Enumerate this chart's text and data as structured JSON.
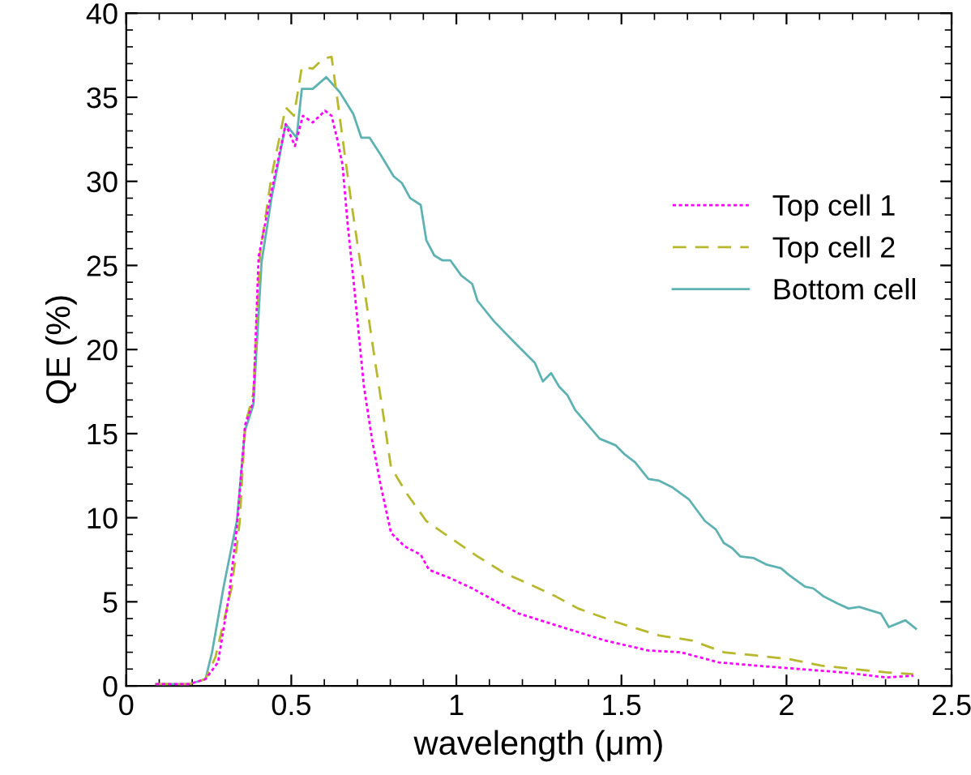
{
  "chart_data": {
    "type": "line",
    "xlabel": "wavelength (μm)",
    "ylabel": "QE (%)",
    "xlim": [
      0,
      2.5
    ],
    "xticks": [
      0,
      0.5,
      1,
      1.5,
      2,
      2.5
    ],
    "ylim": [
      0,
      40
    ],
    "yticks": [
      0,
      5,
      10,
      15,
      20,
      25,
      30,
      35,
      40
    ],
    "grid": false,
    "legend": "top right",
    "series": [
      {
        "name": "Top cell 1",
        "color": "#ff00ff",
        "line_style": "dotted",
        "x": [
          0.09,
          0.19,
          0.24,
          0.278,
          0.311,
          0.335,
          0.36,
          0.385,
          0.401,
          0.44,
          0.483,
          0.511,
          0.535,
          0.565,
          0.602,
          0.622,
          0.638,
          0.655,
          0.671,
          0.688,
          0.704,
          0.72,
          0.745,
          0.77,
          0.802,
          0.843,
          0.892,
          0.917,
          0.982,
          1.048,
          1.113,
          1.189,
          1.27,
          1.352,
          1.45,
          1.582,
          1.68,
          1.794,
          1.91,
          2.04,
          2.171,
          2.302,
          2.384
        ],
        "values": [
          0.1,
          0.1,
          0.4,
          1.4,
          5.3,
          9.4,
          15.5,
          16.9,
          25.5,
          29.4,
          33.4,
          32.1,
          33.9,
          33.5,
          34.2,
          33.9,
          32.6,
          31.0,
          27.4,
          24.2,
          21.0,
          17.8,
          14.6,
          12.0,
          9.1,
          8.3,
          7.8,
          6.9,
          6.4,
          5.8,
          5.1,
          4.3,
          3.8,
          3.3,
          2.7,
          2.1,
          2.0,
          1.4,
          1.2,
          1.0,
          0.8,
          0.5,
          0.6
        ]
      },
      {
        "name": "Top cell 2",
        "color": "#b8b82e",
        "line_style": "dashed",
        "x": [
          0.09,
          0.19,
          0.24,
          0.27,
          0.32,
          0.344,
          0.36,
          0.385,
          0.406,
          0.44,
          0.483,
          0.508,
          0.532,
          0.565,
          0.597,
          0.622,
          0.638,
          0.655,
          0.68,
          0.704,
          0.729,
          0.753,
          0.778,
          0.802,
          0.851,
          0.909,
          0.982,
          1.064,
          1.146,
          1.238,
          1.303,
          1.369,
          1.483,
          1.614,
          1.713,
          1.81,
          1.91,
          2.007,
          2.106,
          2.204,
          2.302,
          2.384
        ],
        "values": [
          0.1,
          0.1,
          0.4,
          1.7,
          5.9,
          9.8,
          15.5,
          17.4,
          25.8,
          30.3,
          34.4,
          33.9,
          36.8,
          36.7,
          37.3,
          37.4,
          35.1,
          32.6,
          29.0,
          25.8,
          22.6,
          19.4,
          16.2,
          13.0,
          11.4,
          9.8,
          8.8,
          7.7,
          6.7,
          5.9,
          5.3,
          4.6,
          3.8,
          3.0,
          2.7,
          2.0,
          1.8,
          1.6,
          1.2,
          1.0,
          0.8,
          0.7
        ]
      },
      {
        "name": "Bottom cell",
        "color": "#5fb2b2",
        "line_style": "solid",
        "x": [
          0.09,
          0.19,
          0.24,
          0.26,
          0.295,
          0.335,
          0.36,
          0.385,
          0.41,
          0.44,
          0.483,
          0.516,
          0.532,
          0.565,
          0.606,
          0.647,
          0.688,
          0.712,
          0.737,
          0.77,
          0.81,
          0.835,
          0.86,
          0.892,
          0.909,
          0.933,
          0.958,
          0.982,
          1.015,
          1.048,
          1.064,
          1.113,
          1.172,
          1.238,
          1.262,
          1.287,
          1.311,
          1.336,
          1.36,
          1.434,
          1.483,
          1.508,
          1.541,
          1.582,
          1.614,
          1.655,
          1.704,
          1.753,
          1.786,
          1.81,
          1.835,
          1.86,
          1.901,
          1.941,
          1.983,
          2.007,
          2.056,
          2.081,
          2.114,
          2.155,
          2.188,
          2.22,
          2.286,
          2.31,
          2.36,
          2.392
        ],
        "values": [
          0.1,
          0.1,
          0.4,
          2.0,
          5.9,
          9.8,
          15.2,
          16.7,
          25.2,
          29.0,
          33.4,
          32.6,
          35.5,
          35.5,
          36.2,
          35.3,
          34.0,
          32.6,
          32.6,
          31.6,
          30.3,
          29.9,
          29.0,
          28.6,
          26.5,
          25.6,
          25.3,
          25.3,
          24.4,
          23.9,
          22.9,
          21.7,
          20.5,
          19.2,
          18.1,
          18.6,
          17.8,
          17.3,
          16.4,
          14.7,
          14.3,
          13.8,
          13.3,
          12.3,
          12.2,
          11.8,
          11.1,
          9.8,
          9.3,
          8.5,
          8.2,
          7.7,
          7.6,
          7.2,
          7.0,
          6.6,
          5.9,
          5.8,
          5.3,
          4.9,
          4.6,
          4.7,
          4.3,
          3.5,
          3.9,
          3.4
        ]
      }
    ]
  }
}
